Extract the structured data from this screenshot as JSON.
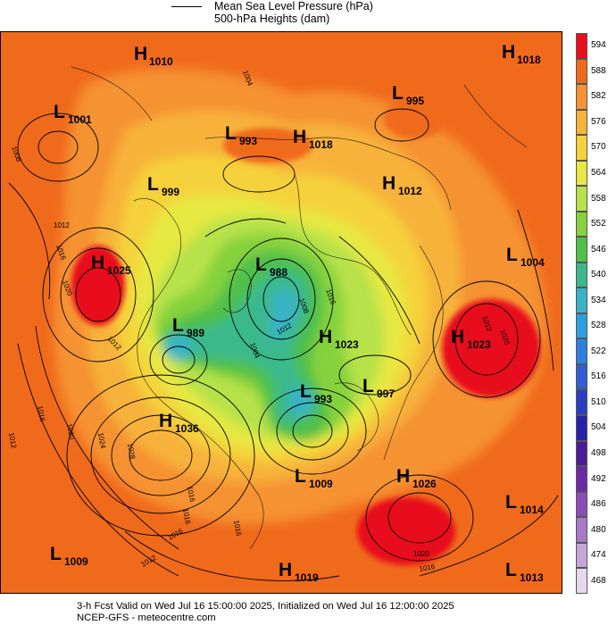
{
  "legend": {
    "line_label": "Mean Sea Level Pressure (hPa)",
    "fill_label": "500-hPa Heights (dam)"
  },
  "colorbar": {
    "levels": [
      "594",
      "588",
      "582",
      "576",
      "570",
      "564",
      "558",
      "552",
      "546",
      "540",
      "534",
      "528",
      "522",
      "516",
      "510",
      "504",
      "498",
      "492",
      "486",
      "480",
      "474",
      "468"
    ],
    "colors": [
      "#e8101e",
      "#f06a1c",
      "#f59233",
      "#f7b23b",
      "#f5d23a",
      "#e7e843",
      "#b7e24a",
      "#86d23e",
      "#4fc04a",
      "#3bb98d",
      "#39b3c8",
      "#2d9fe0",
      "#2f7fde",
      "#2f5ed6",
      "#2a3ec4",
      "#2524a8",
      "#4a1c98",
      "#6a2aa5",
      "#8a4eb8",
      "#a67ac6",
      "#c4a6d8",
      "#e4d9ee"
    ]
  },
  "pressure_centers": [
    {
      "type": "H",
      "value": "1010"
    },
    {
      "type": "H",
      "value": "1018"
    },
    {
      "type": "L",
      "value": "1001"
    },
    {
      "type": "L",
      "value": "995"
    },
    {
      "type": "L",
      "value": "993"
    },
    {
      "type": "H",
      "value": "1018"
    },
    {
      "type": "L",
      "value": "999"
    },
    {
      "type": "H",
      "value": "1012"
    },
    {
      "type": "H",
      "value": "1025"
    },
    {
      "type": "L",
      "value": "988"
    },
    {
      "type": "L",
      "value": "1004"
    },
    {
      "type": "L",
      "value": "989"
    },
    {
      "type": "H",
      "value": "1023"
    },
    {
      "type": "H",
      "value": "1023"
    },
    {
      "type": "L",
      "value": "993"
    },
    {
      "type": "L",
      "value": "997"
    },
    {
      "type": "H",
      "value": "1036"
    },
    {
      "type": "L",
      "value": "1009"
    },
    {
      "type": "H",
      "value": "1026"
    },
    {
      "type": "L",
      "value": "1014"
    },
    {
      "type": "L",
      "value": "1009"
    },
    {
      "type": "H",
      "value": "1019"
    },
    {
      "type": "L",
      "value": "1013"
    }
  ],
  "isobar_labels": [
    "1008",
    "1004",
    "1012",
    "1016",
    "1020",
    "1012",
    "1016",
    "1020",
    "1024",
    "1028",
    "1016",
    "1012",
    "1016",
    "1012",
    "1016",
    "1008",
    "1012",
    "1004",
    "1016",
    "1020",
    "1016",
    "1012",
    "1016",
    "1020"
  ],
  "footer": {
    "line1": "3-h Fcst Valid on Wed Jul 16 15:00:00 2025, Initialized on Wed Jul 16 12:00:00 2025",
    "line2": "NCEP-GFS  - meteocentre.com"
  }
}
